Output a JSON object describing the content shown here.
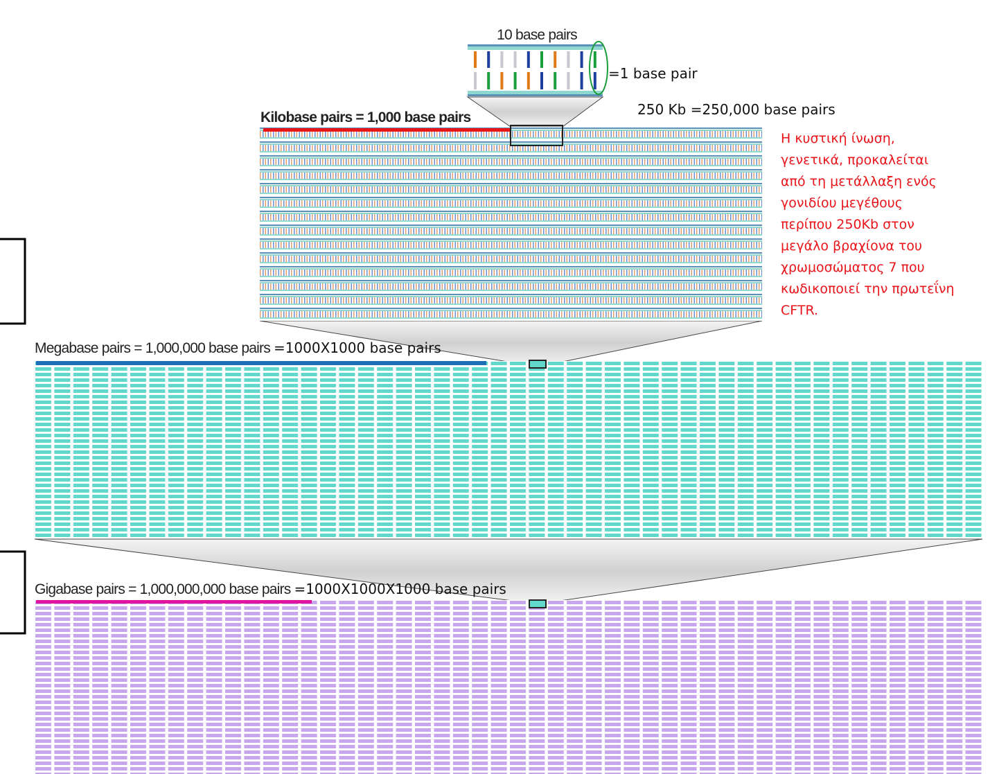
{
  "top_dna": {
    "label": "10 base pairs",
    "unit_label": "=1 base pair"
  },
  "kilobase": {
    "label": "Kilobase pairs = 1,000 base pairs",
    "gene_size": "250 Kb =250,000 base pairs"
  },
  "note": {
    "lines": [
      "Η κυστική ίνωση,",
      "γενετικά, προκαλείται",
      "από τη μετάλλαξη ενός",
      "γονιδίου μεγέθους",
      "περίπου 250Kb στον",
      "μεγάλο βραχίονα του",
      "χρωμοσώματος 7 που",
      "κωδικοποιεί την πρωτεΐνη",
      "CFTR."
    ]
  },
  "megabase": {
    "label": "Megabase pairs = 1,000,000 base pairs",
    "equation": "=1000X1000 base pairs"
  },
  "gigabase": {
    "label": "Gigabase pairs = 1,000,000,000 base pairs",
    "equation": "=1000X1000X1000 base pairs"
  }
}
